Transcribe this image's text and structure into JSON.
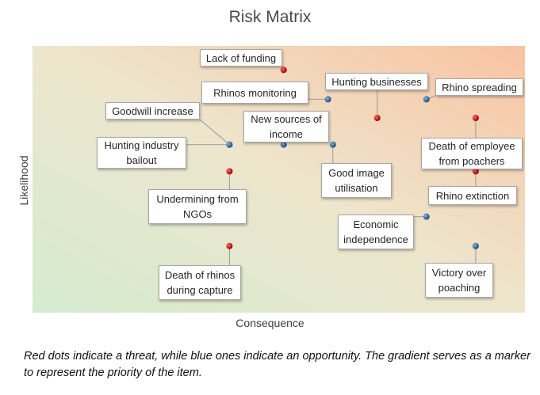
{
  "chart_data": {
    "type": "scatter",
    "title": "Risk Matrix",
    "xlabel": "Consequence",
    "ylabel": "Likelihood",
    "xlim": [
      0,
      10
    ],
    "ylim": [
      0,
      10
    ],
    "grid": false,
    "background": "gradient from green (bottom-left) to orange (top-right) representing priority",
    "colors": {
      "threat": "#c00000",
      "opportunity": "#2e75b6",
      "bg_low": "#d8ecd2",
      "bg_mid": "#efe6cf",
      "bg_high": "#f8c6a6"
    },
    "points": [
      {
        "label": "Lack of funding",
        "x": 5.1,
        "y": 9.1,
        "type": "threat"
      },
      {
        "label": "Hunting businesses",
        "x": 7.0,
        "y": 7.3,
        "type": "threat"
      },
      {
        "label": "Rhinos monitoring",
        "x": 6.0,
        "y": 8.0,
        "type": "opportunity"
      },
      {
        "label": "Rhino spreading",
        "x": 8.0,
        "y": 8.0,
        "type": "opportunity"
      },
      {
        "label": "Goodwill increase",
        "x": 4.0,
        "y": 6.3,
        "type": "opportunity"
      },
      {
        "label": "Hunting industry bailout",
        "x": 4.0,
        "y": 6.3,
        "type": "opportunity"
      },
      {
        "label": "New sources of income",
        "x": 5.1,
        "y": 6.3,
        "type": "opportunity"
      },
      {
        "label": "Good image utilisation",
        "x": 6.1,
        "y": 6.3,
        "type": "opportunity"
      },
      {
        "label": "Death of employee from poachers",
        "x": 9.0,
        "y": 7.3,
        "type": "threat"
      },
      {
        "label": "Undermining from NGOs",
        "x": 4.0,
        "y": 5.3,
        "type": "threat"
      },
      {
        "label": "Rhino extinction",
        "x": 9.0,
        "y": 5.3,
        "type": "threat"
      },
      {
        "label": "Economic independence",
        "x": 8.0,
        "y": 3.6,
        "type": "opportunity"
      },
      {
        "label": "Death of rhinos during capture",
        "x": 4.0,
        "y": 2.5,
        "type": "threat"
      },
      {
        "label": "Victory over poaching",
        "x": 9.0,
        "y": 2.5,
        "type": "opportunity"
      }
    ]
  },
  "caption": "Red dots indicate a threat, while blue ones indicate an opportunity. The gradient serves as a marker to represent the priority of the item."
}
